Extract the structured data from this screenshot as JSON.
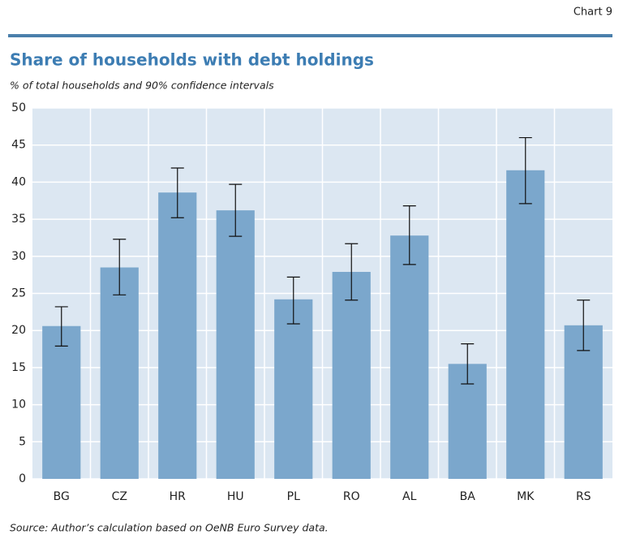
{
  "chart_data": {
    "type": "bar",
    "header": "Chart 9",
    "title": "Share of households with debt holdings",
    "subtitle": "% of total households and 90% confidence intervals",
    "source": "Source: Author’s calculation based on OeNB Euro Survey data.",
    "categories": [
      "BG",
      "CZ",
      "HR",
      "HU",
      "PL",
      "RO",
      "AL",
      "BA",
      "MK",
      "RS"
    ],
    "values": [
      20.6,
      28.5,
      38.6,
      36.2,
      24.2,
      27.9,
      32.8,
      15.5,
      41.6,
      20.7
    ],
    "ci_low": [
      17.9,
      24.8,
      35.2,
      32.7,
      20.9,
      24.1,
      28.9,
      12.8,
      37.1,
      17.3
    ],
    "ci_high": [
      23.2,
      32.3,
      41.9,
      39.7,
      27.2,
      31.7,
      36.8,
      18.2,
      46.0,
      24.1
    ],
    "color": "#7ba7cc",
    "ylim": [
      0,
      50
    ],
    "yticks": [
      0,
      5,
      10,
      15,
      20,
      25,
      30,
      35,
      40,
      45,
      50
    ],
    "grid": true
  }
}
